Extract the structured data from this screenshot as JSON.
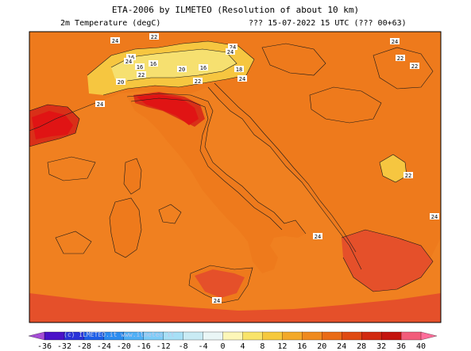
{
  "header": {
    "title": "ETA-2006 by ILMETEO (Resolution of about 10 km)",
    "variable": "2m Temperature (degC)",
    "valid_time": "??? 15-07-2022 15 UTC (??? 00+63)"
  },
  "watermark": "(c) ILMETEO.it www.ilmeteo.it",
  "map": {
    "region": "Italy and surrounding Mediterranean",
    "contour_labels": [
      "24",
      "22",
      "24",
      "24",
      "16",
      "22",
      "16",
      "16",
      "20",
      "16",
      "18",
      "22",
      "24",
      "22",
      "20",
      "22",
      "24",
      "22",
      "24",
      "24",
      "24",
      "24",
      "24"
    ]
  },
  "legend": {
    "ticks": [
      "-36",
      "-32",
      "-28",
      "-24",
      "-20",
      "-16",
      "-12",
      "-8",
      "-4",
      "0",
      "4",
      "8",
      "12",
      "16",
      "20",
      "24",
      "28",
      "32",
      "36",
      "40"
    ],
    "colors": [
      "#6a0dad",
      "#4a12c8",
      "#2a33d8",
      "#1e5fe8",
      "#2b8cf0",
      "#4fb0f6",
      "#7ccdf8",
      "#a7e0f6",
      "#c9ebf4",
      "#eaf6f6",
      "#fdf7b8",
      "#f9e46a",
      "#f6c93d",
      "#f3a92a",
      "#ef8a1f",
      "#ea6b16",
      "#e04a12",
      "#d22a10",
      "#c4140e",
      "#f25c7a"
    ],
    "over_color": "#ff6d9a",
    "under_color": "#a64dd6"
  },
  "colors": {
    "sea": "#f08020",
    "land_base": "#ee7a1c",
    "hot": "#e5502a",
    "very_hot": "#d93018",
    "extreme": "#e01414",
    "alps_mild": "#f6c640",
    "alps_cool": "#f6e070"
  }
}
